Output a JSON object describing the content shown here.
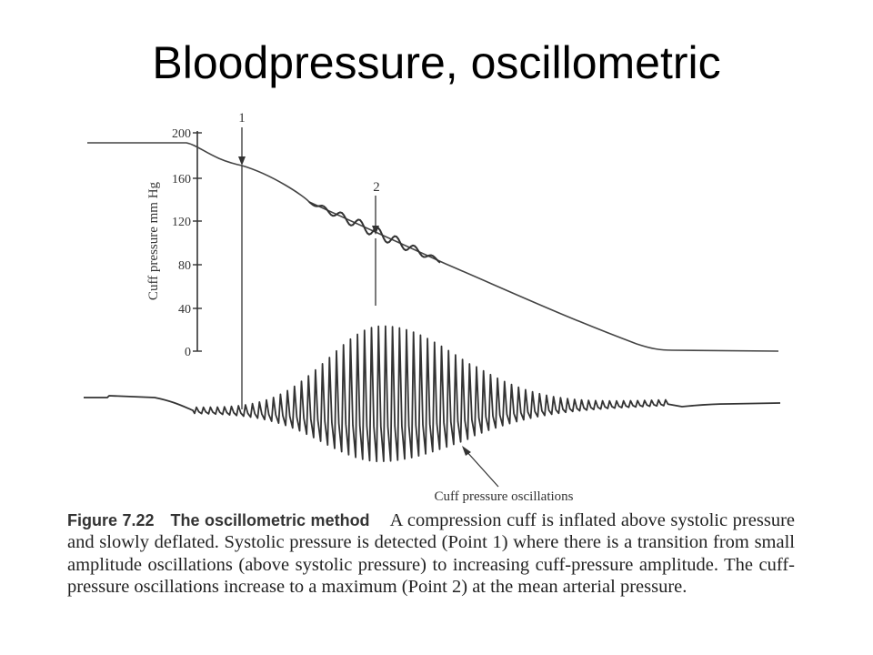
{
  "slide": {
    "title": "Bloodpressure, oscillometric"
  },
  "figure": {
    "y_axis_label": "Cuff pressure mm Hg",
    "y_ticks": [
      "200",
      "160",
      "120",
      "80",
      "40",
      "0"
    ],
    "point_1_label": "1",
    "point_2_label": "2",
    "oscillations_label": "Cuff pressure oscillations"
  },
  "caption": {
    "figure_number": "Figure 7.22",
    "figure_name": "The oscillometric method",
    "text": "A compression cuff is inflated above systolic pressure and slowly deflated. Systolic pressure is detected (Point 1) where there is a transition from small amplitude oscillations (above systolic pressure) to increasing cuff-pressure amplitude. The cuff-pressure oscillations increase to a maximum (Point 2) at the mean arterial pressure."
  }
}
